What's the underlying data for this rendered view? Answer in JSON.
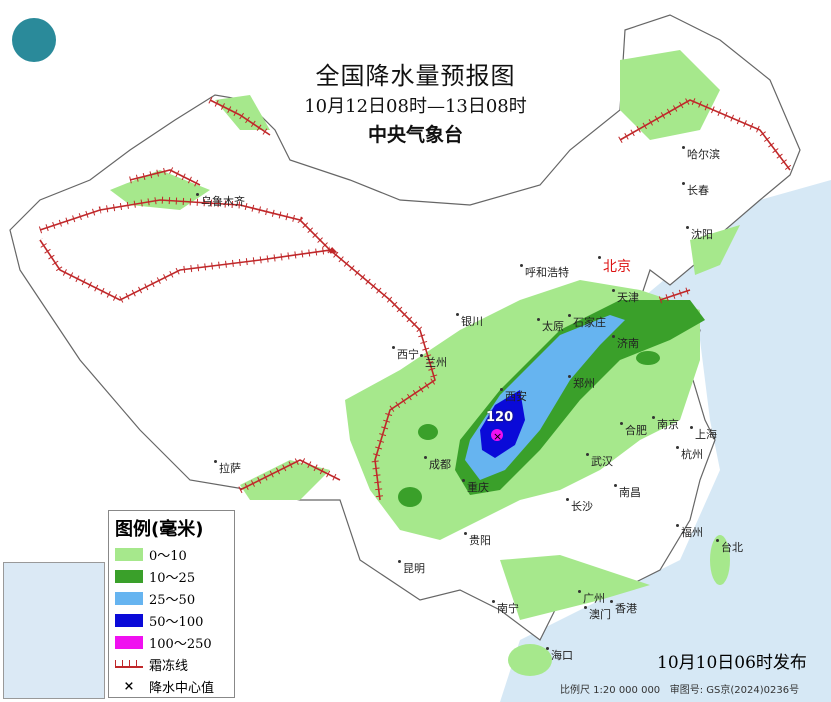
{
  "header": {
    "title": "全国降水量预报图",
    "period": "10月12日08时—13日08时",
    "issuer": "中央气象台"
  },
  "legend": {
    "title": "图例(毫米)",
    "items": [
      {
        "label": "0～10",
        "color": "#a6e88c"
      },
      {
        "label": "10～25",
        "color": "#3aa02a"
      },
      {
        "label": "25～50",
        "color": "#66b4f0"
      },
      {
        "label": "50～100",
        "color": "#0a0ad8"
      },
      {
        "label": "100～250",
        "color": "#f010f0"
      }
    ],
    "frost_label": "霜冻线",
    "center_label": "降水中心值"
  },
  "precip_center_value": "120",
  "cities": [
    {
      "name": "北京",
      "capital": true
    },
    {
      "name": "乌鲁木齐"
    },
    {
      "name": "哈尔滨"
    },
    {
      "name": "长春"
    },
    {
      "name": "沈阳"
    },
    {
      "name": "呼和浩特"
    },
    {
      "name": "天津"
    },
    {
      "name": "石家庄"
    },
    {
      "name": "太原"
    },
    {
      "name": "银川"
    },
    {
      "name": "西宁"
    },
    {
      "name": "兰州"
    },
    {
      "name": "济南"
    },
    {
      "name": "郑州"
    },
    {
      "name": "西安"
    },
    {
      "name": "合肥"
    },
    {
      "name": "南京"
    },
    {
      "name": "上海"
    },
    {
      "name": "杭州"
    },
    {
      "name": "武汉"
    },
    {
      "name": "成都"
    },
    {
      "name": "重庆"
    },
    {
      "name": "长沙"
    },
    {
      "name": "南昌"
    },
    {
      "name": "拉萨"
    },
    {
      "name": "贵阳"
    },
    {
      "name": "福州"
    },
    {
      "name": "台北"
    },
    {
      "name": "昆明"
    },
    {
      "name": "南宁"
    },
    {
      "name": "广州"
    },
    {
      "name": "澳门"
    },
    {
      "name": "香港"
    },
    {
      "name": "海口"
    }
  ],
  "footer": {
    "issued": "10月10日06时发布",
    "scale": "比例尺 1:20 000 000",
    "approval": "审图号: GS京(2024)0236号"
  },
  "colors": {
    "sea": "#d6e8f5",
    "frost": "#c0282a",
    "land": "#ffffff"
  }
}
